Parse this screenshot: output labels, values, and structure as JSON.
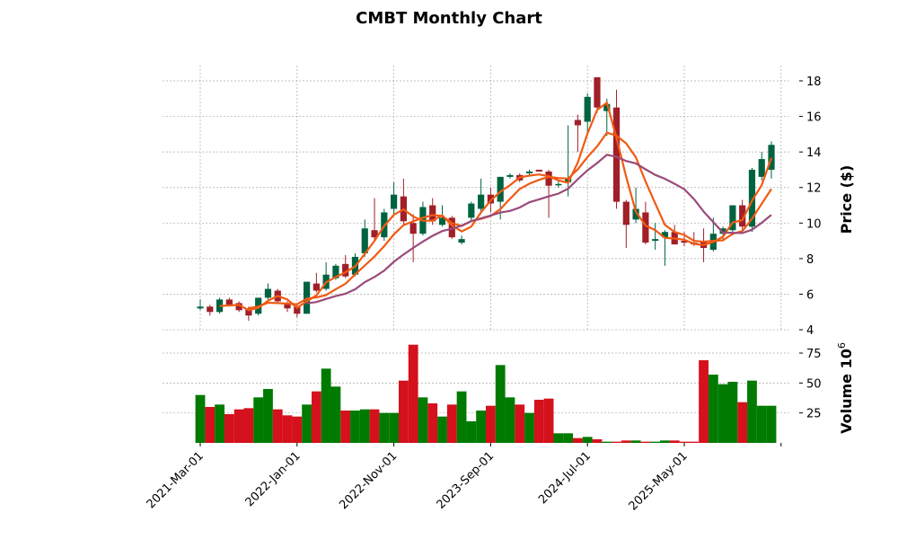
{
  "chart_data": {
    "type": "candlestick",
    "title": "CMBT Monthly Chart",
    "ylabel": "Price ($)",
    "volume_label": "Volume",
    "volume_unit": "10",
    "volume_exp": "6",
    "ylim": [
      4,
      18.8
    ],
    "yticks": [
      4,
      6,
      8,
      10,
      12,
      14,
      16,
      18
    ],
    "vol_ylim": [
      0,
      85
    ],
    "vol_yticks": [
      25,
      50,
      75
    ],
    "xtick_labels": [
      "2021-Mar-01",
      "2022-Jan-01",
      "2022-Nov-01",
      "2023-Sep-01",
      "2024-Jul-01",
      "2025-May-01"
    ],
    "xtick_every": 10,
    "ma_periods": [
      3,
      6,
      12
    ],
    "colors": {
      "up": "#006340",
      "down": "#a01f28",
      "vol_up": "#007a00",
      "vol_down": "#d4111c",
      "ma_fast": "#f05a14",
      "ma_mid": "#f05a14",
      "ma_slow": "#9a4a7a"
    },
    "ohlc": [
      [
        5.2,
        5.7,
        5.1,
        5.3
      ],
      [
        5.3,
        5.4,
        4.8,
        5.0
      ],
      [
        5.0,
        5.8,
        4.9,
        5.7
      ],
      [
        5.7,
        5.8,
        5.3,
        5.4
      ],
      [
        5.5,
        5.6,
        5.0,
        5.1
      ],
      [
        5.2,
        5.3,
        4.5,
        4.8
      ],
      [
        4.9,
        5.8,
        4.8,
        5.8
      ],
      [
        5.8,
        6.6,
        5.7,
        6.3
      ],
      [
        6.2,
        6.3,
        5.5,
        5.6
      ],
      [
        5.5,
        5.6,
        5.0,
        5.2
      ],
      [
        5.3,
        5.4,
        4.7,
        4.9
      ],
      [
        4.9,
        6.7,
        4.9,
        6.7
      ],
      [
        6.6,
        7.2,
        6.1,
        6.2
      ],
      [
        6.3,
        7.8,
        6.2,
        7.1
      ],
      [
        6.9,
        7.7,
        6.8,
        7.6
      ],
      [
        7.7,
        8.2,
        6.9,
        7.0
      ],
      [
        7.1,
        8.3,
        7.0,
        8.1
      ],
      [
        8.3,
        10.2,
        8.1,
        9.7
      ],
      [
        9.6,
        11.4,
        9.0,
        9.2
      ],
      [
        9.2,
        10.8,
        9.0,
        10.6
      ],
      [
        10.8,
        12.3,
        10.5,
        11.6
      ],
      [
        11.5,
        12.5,
        9.9,
        10.1
      ],
      [
        10.0,
        10.5,
        7.8,
        9.4
      ],
      [
        9.4,
        11.2,
        9.3,
        10.9
      ],
      [
        11.0,
        11.4,
        9.9,
        10.1
      ],
      [
        9.9,
        11.0,
        9.8,
        10.3
      ],
      [
        10.3,
        10.4,
        9.1,
        9.2
      ],
      [
        8.9,
        9.3,
        8.8,
        9.1
      ],
      [
        10.3,
        11.2,
        10.1,
        11.1
      ],
      [
        10.8,
        12.5,
        10.5,
        11.6
      ],
      [
        11.6,
        12.0,
        10.6,
        11.1
      ],
      [
        11.2,
        12.6,
        10.2,
        12.6
      ],
      [
        12.6,
        12.8,
        12.5,
        12.7
      ],
      [
        12.7,
        12.8,
        12.3,
        12.4
      ],
      [
        12.8,
        13.0,
        12.7,
        12.9
      ],
      [
        13.0,
        13.0,
        12.9,
        12.9
      ],
      [
        12.9,
        13.0,
        10.3,
        12.1
      ],
      [
        12.2,
        12.4,
        12.0,
        12.2
      ],
      [
        12.3,
        15.5,
        11.5,
        12.5
      ],
      [
        15.8,
        16.1,
        14.0,
        15.5
      ],
      [
        15.7,
        17.3,
        15.0,
        17.1
      ],
      [
        18.2,
        18.2,
        16.2,
        16.5
      ],
      [
        16.3,
        17.0,
        14.9,
        16.7
      ],
      [
        16.5,
        17.5,
        10.8,
        11.2
      ],
      [
        11.2,
        11.3,
        8.6,
        9.9
      ],
      [
        10.2,
        12.0,
        10.0,
        10.8
      ],
      [
        10.6,
        11.2,
        8.8,
        8.9
      ],
      [
        9.0,
        10.0,
        8.5,
        9.1
      ],
      [
        9.2,
        9.6,
        7.6,
        9.5
      ],
      [
        9.5,
        9.9,
        8.8,
        8.8
      ],
      [
        9.0,
        9.5,
        8.7,
        8.9
      ],
      [
        8.9,
        9.5,
        8.7,
        8.8
      ],
      [
        9.0,
        9.7,
        7.8,
        8.6
      ],
      [
        8.5,
        10.3,
        8.4,
        9.4
      ],
      [
        9.4,
        9.8,
        9.0,
        9.7
      ],
      [
        9.6,
        11.0,
        9.3,
        11.0
      ],
      [
        11.0,
        11.3,
        9.6,
        9.8
      ],
      [
        9.8,
        13.1,
        9.5,
        13.0
      ],
      [
        12.6,
        14.0,
        12.4,
        13.6
      ],
      [
        13.0,
        14.6,
        12.5,
        14.4
      ]
    ],
    "volume": [
      40,
      30,
      32,
      24,
      28,
      29,
      38,
      45,
      28,
      23,
      22,
      32,
      43,
      62,
      47,
      27,
      27,
      28,
      28,
      25,
      25,
      52,
      82,
      38,
      33,
      22,
      32,
      43,
      18,
      27,
      31,
      65,
      38,
      32,
      25,
      36,
      37,
      8,
      8,
      4,
      5,
      3,
      1,
      1,
      2,
      2,
      1,
      1,
      2,
      2,
      1,
      1,
      69,
      57,
      49,
      51,
      34,
      52,
      31,
      31
    ]
  }
}
